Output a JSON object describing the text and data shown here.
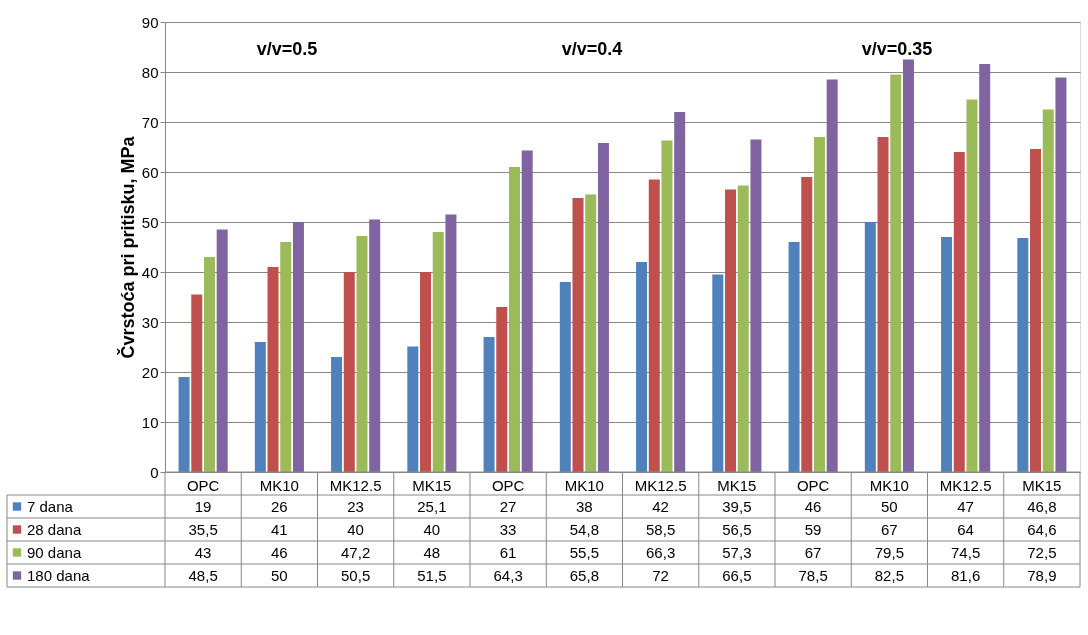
{
  "chart_data": {
    "type": "bar",
    "ylabel": "Čvrstoća pri pritisku, MPa",
    "categories": [
      "OPC",
      "MK10",
      "MK12.5",
      "MK15",
      "OPC",
      "MK10",
      "MK12.5",
      "MK15",
      "OPC",
      "MK10",
      "MK12.5",
      "MK15"
    ],
    "series": [
      {
        "name": "7 dana",
        "color": "#4f81bd",
        "values": [
          19,
          26,
          23,
          25.1,
          27,
          38,
          42,
          39.5,
          46,
          50,
          47,
          46.8
        ],
        "value_labels": [
          "19",
          "26",
          "23",
          "25,1",
          "27",
          "38",
          "42",
          "39,5",
          "46",
          "50",
          "47",
          "46,8"
        ]
      },
      {
        "name": "28 dana",
        "color": "#c0504d",
        "values": [
          35.5,
          41,
          40,
          40,
          33,
          54.8,
          58.5,
          56.5,
          59,
          67,
          64,
          64.6
        ],
        "value_labels": [
          "35,5",
          "41",
          "40",
          "40",
          "33",
          "54,8",
          "58,5",
          "56,5",
          "59",
          "67",
          "64",
          "64,6"
        ]
      },
      {
        "name": "90 dana",
        "color": "#9bbb59",
        "values": [
          43,
          46,
          47.2,
          48,
          61,
          55.5,
          66.3,
          57.3,
          67,
          79.5,
          74.5,
          72.5
        ],
        "value_labels": [
          "43",
          "46",
          "47,2",
          "48",
          "61",
          "55,5",
          "66,3",
          "57,3",
          "67",
          "79,5",
          "74,5",
          "72,5"
        ]
      },
      {
        "name": "180 dana",
        "color": "#8064a2",
        "values": [
          48.5,
          50,
          50.5,
          51.5,
          64.3,
          65.8,
          72,
          66.5,
          78.5,
          82.5,
          81.6,
          78.9
        ],
        "value_labels": [
          "48,5",
          "50",
          "50,5",
          "51,5",
          "64,3",
          "65,8",
          "72",
          "66,5",
          "78,5",
          "82,5",
          "81,6",
          "78,9"
        ]
      }
    ],
    "annotations": [
      "v/v=0.5",
      "v/v=0.4",
      "v/v=0.35"
    ],
    "ylim": [
      0,
      90
    ],
    "yticks": [
      0,
      10,
      20,
      30,
      40,
      50,
      60,
      70,
      80,
      90
    ],
    "grid": "y",
    "legend": "bottom"
  }
}
